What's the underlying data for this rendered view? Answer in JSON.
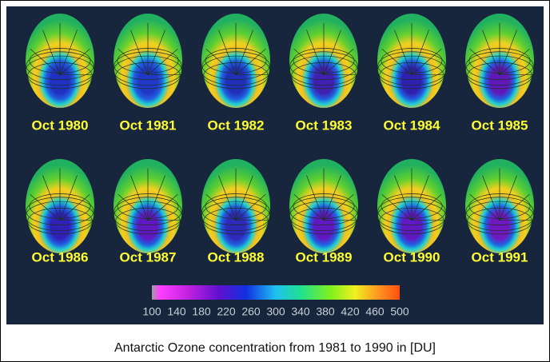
{
  "panels": [
    "Oct 1980",
    "Oct 1981",
    "Oct 1982",
    "Oct 1983",
    "Oct 1984",
    "Oct 1985",
    "Oct 1986",
    "Oct 1987",
    "Oct 1988",
    "Oct 1989",
    "Oct 1990",
    "Oct 1991"
  ],
  "colorbar": {
    "ticks": [
      100,
      140,
      180,
      220,
      260,
      300,
      340,
      380,
      420,
      460,
      500
    ]
  },
  "caption": "Antarctic Ozone concentration from 1981 to 1990 in [DU]"
}
